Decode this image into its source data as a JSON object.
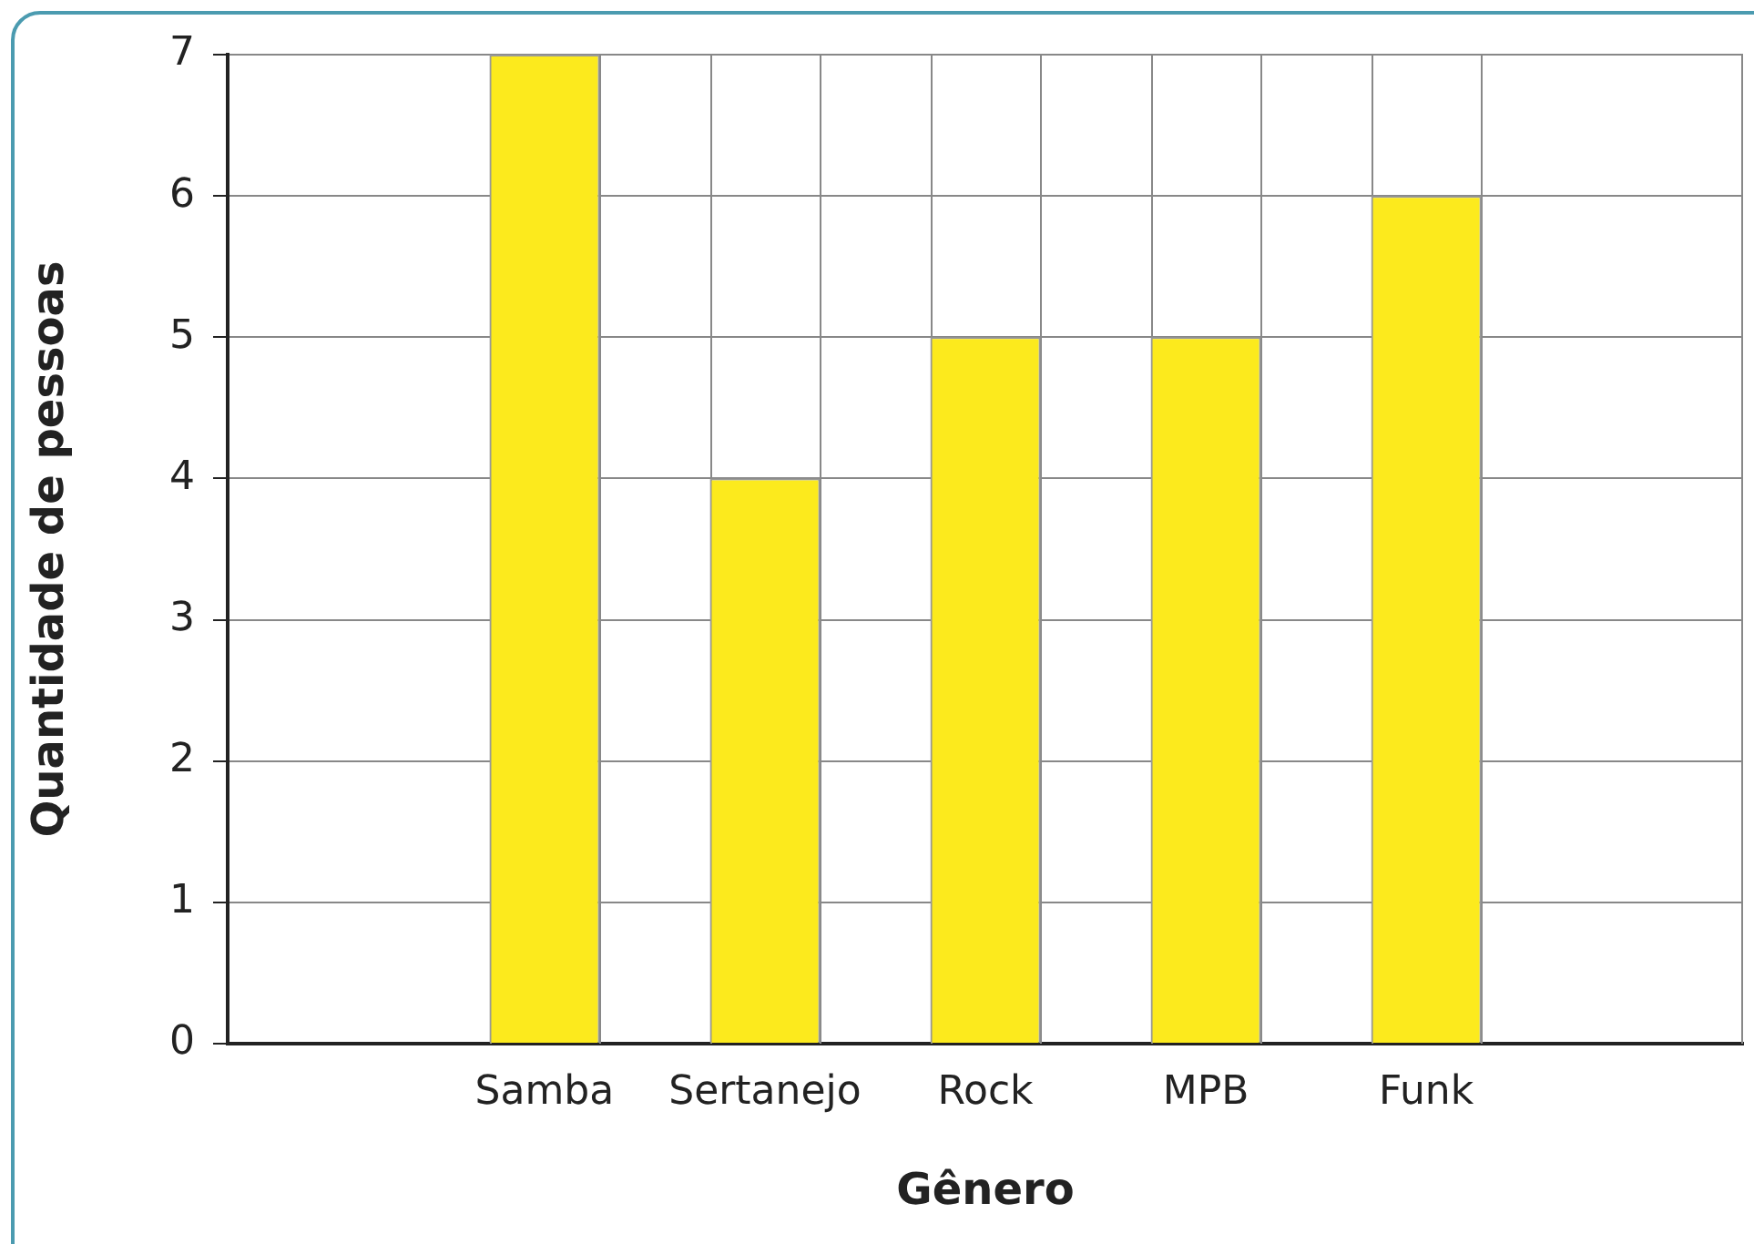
{
  "chart_data": {
    "type": "bar",
    "xlabel": "Gênero",
    "ylabel": "Quantidade de pessoas",
    "categories": [
      "Samba",
      "Sertanejo",
      "Rock",
      "MPB",
      "Funk"
    ],
    "values": [
      7,
      4,
      5,
      5,
      6
    ],
    "color": "#fcea1d",
    "ylim": [
      0,
      7
    ],
    "yticks": [
      0,
      1,
      2,
      3,
      4,
      5,
      6,
      7
    ],
    "grid": true
  }
}
